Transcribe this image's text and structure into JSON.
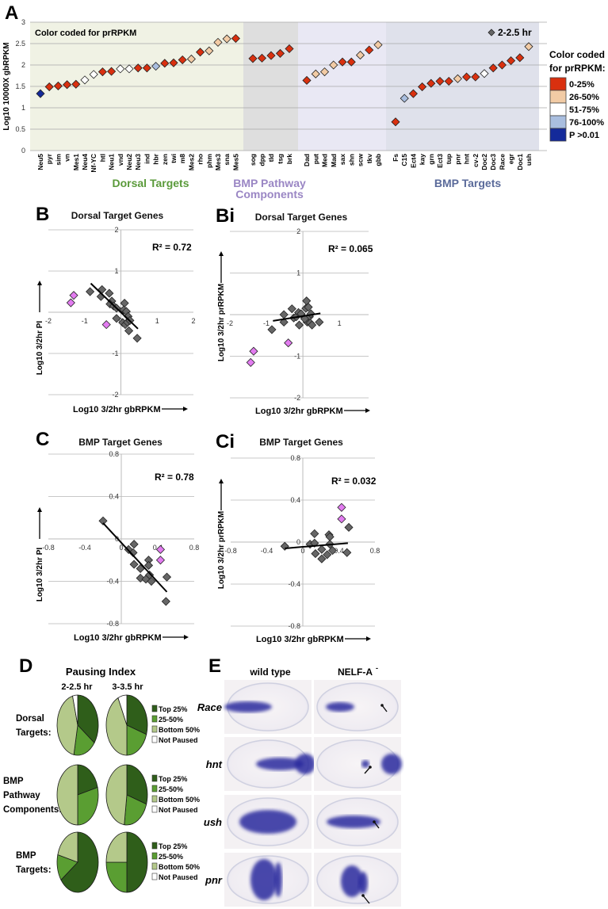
{
  "panel_letters": {
    "A": "A",
    "B": "B",
    "Bi": "Bi",
    "C": "C",
    "Ci": "Ci",
    "D": "D",
    "E": "E"
  },
  "colors": {
    "p0_25": "#d9300f",
    "p26_50": "#f2cba5",
    "p51_75": "#ffffff",
    "p76_100": "#a9bedf",
    "pgt": "#142a9a",
    "gray_point": "#666666",
    "pink_point": "#e27cf0",
    "dorsal_bg": "#f0f2e4",
    "pathway_gray_bg": "#dedede",
    "pathway_bg": "#e9e8f4",
    "bmp_bg": "#dfe1eb",
    "pie_top": "#2f5e1a",
    "pie_25_50": "#5a9e32",
    "pie_bottom": "#b4c98a",
    "pie_not": "#ffffff"
  },
  "chart_data": [
    {
      "id": "A",
      "type": "scatter",
      "ylabel": "Log10 10000X gbRPKM",
      "ylim": [
        0,
        3
      ],
      "yticks": [
        0,
        0.5,
        1,
        1.5,
        2,
        2.5,
        3
      ],
      "annotation": "Color coded for prRPKM",
      "series_label": "2-2.5 hr",
      "legend": {
        "title1": "Color coded",
        "title2": "for prRPKM:",
        "placement": "right",
        "items": [
          {
            "key": "p0_25",
            "label": "0-25%"
          },
          {
            "key": "p26_50",
            "label": "26-50%"
          },
          {
            "key": "p51_75",
            "label": "51-75%"
          },
          {
            "key": "p76_100",
            "label": "76-100%"
          },
          {
            "key": "pgt",
            "label": "P >0.01"
          }
        ]
      },
      "groups": [
        {
          "label": "Dorsal Targets",
          "color": "#5a9a3a",
          "genes": [
            [
              "Neu5",
              1.33,
              "pgt"
            ],
            [
              "pyr",
              1.49,
              "p0_25"
            ],
            [
              "sim",
              1.51,
              "p0_25"
            ],
            [
              "vn",
              1.54,
              "p0_25"
            ],
            [
              "Mes1",
              1.55,
              "p0_25"
            ],
            [
              "Neu4",
              1.65,
              "p51_75"
            ],
            [
              "Nf-YC",
              1.78,
              "p51_75"
            ],
            [
              "htl",
              1.84,
              "p0_25"
            ],
            [
              "Neu1",
              1.85,
              "p0_25"
            ],
            [
              "vnd",
              1.91,
              "p51_75"
            ],
            [
              "Neu2",
              1.91,
              "p51_75"
            ],
            [
              "Neu3",
              1.93,
              "p0_25"
            ],
            [
              "ind",
              1.93,
              "p0_25"
            ],
            [
              "hbr",
              1.97,
              "p76_100"
            ],
            [
              "zen",
              2.04,
              "p0_25"
            ],
            [
              "twi",
              2.05,
              "p0_25"
            ],
            [
              "m8",
              2.12,
              "p0_25"
            ],
            [
              "Mes2",
              2.14,
              "p26_50"
            ],
            [
              "rho",
              2.3,
              "p0_25"
            ],
            [
              "phm",
              2.33,
              "p26_50"
            ],
            [
              "Mes3",
              2.53,
              "p26_50"
            ],
            [
              "sna",
              2.61,
              "p26_50"
            ],
            [
              "Mes5",
              2.62,
              "p0_25"
            ]
          ]
        },
        {
          "label": "BMP Pathway Components",
          "label_lines": [
            "BMP Pathway",
            "Components"
          ],
          "color": "#9a86c4",
          "genes": [
            [
              "sog",
              2.15,
              "p0_25"
            ],
            [
              "dpp",
              2.16,
              "p0_25"
            ],
            [
              "tld",
              2.22,
              "p0_25"
            ],
            [
              "tsg",
              2.27,
              "p0_25"
            ],
            [
              "brk",
              2.38,
              "p0_25"
            ],
            [
              "Dad",
              1.64,
              "p0_25"
            ],
            [
              "put",
              1.79,
              "p26_50"
            ],
            [
              "Med",
              1.84,
              "p26_50"
            ],
            [
              "Mad",
              2.0,
              "p26_50"
            ],
            [
              "sax",
              2.07,
              "p0_25"
            ],
            [
              "shn",
              2.07,
              "p0_25"
            ],
            [
              "scw",
              2.23,
              "p26_50"
            ],
            [
              "tkv",
              2.35,
              "p0_25"
            ],
            [
              "gbb",
              2.47,
              "p26_50"
            ]
          ]
        },
        {
          "label": "BMP Targets",
          "color": "#5a6a9a",
          "genes": [
            [
              "Fs",
              0.67,
              "p0_25"
            ],
            [
              "C15",
              1.22,
              "p76_100"
            ],
            [
              "Ect4",
              1.33,
              "p0_25"
            ],
            [
              "kay",
              1.49,
              "p0_25"
            ],
            [
              "grn",
              1.57,
              "p0_25"
            ],
            [
              "Ect3",
              1.62,
              "p0_25"
            ],
            [
              "tup",
              1.62,
              "p0_25"
            ],
            [
              "pnr",
              1.68,
              "p26_50"
            ],
            [
              "hnt",
              1.72,
              "p0_25"
            ],
            [
              "cv-2",
              1.72,
              "p0_25"
            ],
            [
              "Doc2",
              1.8,
              "p51_75"
            ],
            [
              "Doc3",
              1.93,
              "p0_25"
            ],
            [
              "Race",
              2.0,
              "p0_25"
            ],
            [
              "egr",
              2.1,
              "p0_25"
            ],
            [
              "Doc1",
              2.17,
              "p0_25"
            ],
            [
              "ush",
              2.43,
              "p26_50"
            ]
          ]
        }
      ]
    },
    {
      "id": "B",
      "type": "scatter",
      "title": "Dorsal Target Genes",
      "xlabel": "Log10 3/2hr gbRPKM",
      "ylabel": "Log10 3/2hr PI",
      "r2": "R² = 0.72",
      "xlim": [
        -2,
        2
      ],
      "ylim": [
        -2,
        2
      ],
      "xticks": [
        -2,
        -1,
        0,
        1,
        2
      ],
      "yticks": [
        -2,
        -1,
        1,
        2
      ],
      "xtick_labels": [
        "-2",
        "-1",
        "0",
        "1",
        "2"
      ],
      "ytick_labels": [
        "-2",
        "-1",
        "1",
        "2"
      ],
      "gray": [
        [
          -0.85,
          0.5
        ],
        [
          -0.52,
          0.55
        ],
        [
          -0.55,
          0.38
        ],
        [
          -0.32,
          0.46
        ],
        [
          -0.25,
          0.27
        ],
        [
          -0.3,
          0.2
        ],
        [
          -0.2,
          0.15
        ],
        [
          -0.12,
          0.1
        ],
        [
          -0.12,
          -0.15
        ],
        [
          0.1,
          0.22
        ],
        [
          0.08,
          0.06
        ],
        [
          0.15,
          0.02
        ],
        [
          0.2,
          -0.1
        ],
        [
          0.05,
          -0.25
        ],
        [
          0.12,
          -0.3
        ],
        [
          0.18,
          -0.24
        ],
        [
          0.25,
          -0.2
        ],
        [
          0.22,
          -0.45
        ],
        [
          0.45,
          -0.63
        ]
      ],
      "pink": [
        [
          -1.38,
          0.23
        ],
        [
          -1.3,
          0.41
        ],
        [
          -0.4,
          -0.3
        ]
      ],
      "fit": [
        [
          -0.83,
          0.7
        ],
        [
          0.47,
          -0.4
        ]
      ]
    },
    {
      "id": "Bi",
      "type": "scatter",
      "title": "Dorsal Target Genes",
      "xlabel": "Log10 3/2hr gbRPKM",
      "ylabel": "Log10 3/2hr prRPKM",
      "r2": "R² = 0.065",
      "xlim": [
        -2,
        1.8
      ],
      "ylim": [
        -2,
        2
      ],
      "xticks": [
        -2,
        -1,
        1
      ],
      "yticks": [
        -2,
        -1,
        1,
        2
      ],
      "xtick_labels": [
        "-2",
        "-1",
        "1"
      ],
      "ytick_labels": [
        "-2",
        "-1",
        "1",
        "2"
      ],
      "gray": [
        [
          -0.85,
          -0.36
        ],
        [
          -0.52,
          -0.18
        ],
        [
          -0.52,
          0.0
        ],
        [
          -0.3,
          0.14
        ],
        [
          -0.25,
          -0.08
        ],
        [
          -0.18,
          -0.05
        ],
        [
          -0.12,
          0.05
        ],
        [
          -0.05,
          0.02
        ],
        [
          -0.1,
          -0.25
        ],
        [
          0.1,
          0.33
        ],
        [
          0.08,
          0.15
        ],
        [
          0.15,
          0.18
        ],
        [
          0.12,
          -0.18
        ],
        [
          0.18,
          -0.05
        ],
        [
          0.22,
          0.02
        ],
        [
          0.2,
          -0.2
        ],
        [
          0.25,
          -0.25
        ],
        [
          0.05,
          -0.1
        ],
        [
          0.45,
          -0.18
        ]
      ],
      "pink": [
        [
          -1.35,
          -0.88
        ],
        [
          -1.43,
          -1.15
        ],
        [
          -0.4,
          -0.68
        ]
      ],
      "fit": [
        [
          -0.82,
          -0.15
        ],
        [
          0.48,
          0.03
        ]
      ]
    },
    {
      "id": "C",
      "type": "scatter",
      "title": "BMP Target Genes",
      "xlabel": "Log10 3/2hr gbRPKM",
      "ylabel": "Log10 3/2hr PI",
      "r2": "R² = 0.78",
      "xlim": [
        -0.8,
        0.8
      ],
      "ylim": [
        -0.8,
        0.8
      ],
      "xticks": [
        -0.8,
        -0.4,
        0,
        0.4,
        0.8
      ],
      "yticks": [
        -0.8,
        -0.4,
        0,
        0.4,
        0.8
      ],
      "xtick_labels": [
        "-0.8",
        "-0.4",
        "0",
        "0.4",
        "0.8"
      ],
      "ytick_labels": [
        "-0.8",
        "-0.4",
        "0",
        "0.4",
        "0.8"
      ],
      "gray": [
        [
          -0.2,
          0.17
        ],
        [
          0.08,
          -0.1
        ],
        [
          0.13,
          -0.13
        ],
        [
          0.14,
          -0.05
        ],
        [
          0.14,
          -0.24
        ],
        [
          0.21,
          -0.28
        ],
        [
          0.21,
          -0.37
        ],
        [
          0.27,
          -0.38
        ],
        [
          0.3,
          -0.2
        ],
        [
          0.3,
          -0.25
        ],
        [
          0.31,
          -0.34
        ],
        [
          0.33,
          -0.4
        ],
        [
          0.5,
          -0.36
        ],
        [
          0.49,
          -0.59
        ]
      ],
      "pink": [
        [
          0.43,
          -0.1
        ],
        [
          0.43,
          -0.2
        ]
      ],
      "fit": [
        [
          -0.2,
          0.15
        ],
        [
          0.5,
          -0.5
        ]
      ]
    },
    {
      "id": "Ci",
      "type": "scatter",
      "title": "BMP Target Genes",
      "xlabel": "Log10 3/2hr gbRPKM",
      "ylabel": "Log10 3/2hr prRPKM",
      "r2": "R² = 0.032",
      "xlim": [
        -0.8,
        0.8
      ],
      "ylim": [
        -0.8,
        0.8
      ],
      "xticks": [
        -0.8,
        -0.4,
        0,
        0.4,
        0.8
      ],
      "yticks": [
        -0.8,
        -0.4,
        0,
        0.4,
        0.8
      ],
      "xtick_labels": [
        "-0.8",
        "-0.4",
        "0",
        "0.4",
        "0.8"
      ],
      "ytick_labels": [
        "-0.8",
        "-0.4",
        "0",
        "0.4",
        "0.8"
      ],
      "gray": [
        [
          -0.2,
          -0.04
        ],
        [
          0.08,
          -0.02
        ],
        [
          0.13,
          0.08
        ],
        [
          0.13,
          -0.01
        ],
        [
          0.14,
          -0.11
        ],
        [
          0.21,
          -0.07
        ],
        [
          0.21,
          -0.16
        ],
        [
          0.27,
          -0.12
        ],
        [
          0.29,
          0.07
        ],
        [
          0.3,
          0.05
        ],
        [
          0.3,
          -0.02
        ],
        [
          0.33,
          -0.08
        ],
        [
          0.49,
          -0.1
        ],
        [
          0.51,
          0.14
        ]
      ],
      "pink": [
        [
          0.43,
          0.33
        ],
        [
          0.43,
          0.22
        ]
      ],
      "fit": [
        [
          -0.2,
          -0.06
        ],
        [
          0.5,
          -0.01
        ]
      ]
    },
    {
      "id": "D",
      "type": "pie",
      "title": "Pausing Index",
      "columns": [
        "2-2.5 hr",
        "3-3.5 hr"
      ],
      "legend": [
        "Top 25%",
        "25-50%",
        "Bottom 50%",
        "Not Paused"
      ],
      "rows": [
        {
          "label_lines": [
            "Dorsal",
            "Targets:"
          ],
          "pies": [
            [
              35,
              18,
              43,
              4
            ],
            [
              30,
              20,
              43,
              7
            ]
          ]
        },
        {
          "label_lines": [
            "BMP",
            "Pathway",
            "Components:"
          ],
          "pies": [
            [
              21,
              29,
              50,
              0
            ],
            [
              30,
              22,
              48,
              0
            ]
          ]
        },
        {
          "label_lines": [
            "BMP",
            "Targets:"
          ],
          "pies": [
            [
              65,
              14,
              21,
              0
            ],
            [
              50,
              25,
              25,
              0
            ]
          ]
        }
      ]
    }
  ],
  "panel_E": {
    "columns": [
      "wild type",
      "NELF-A"
    ],
    "column_superscript": "-",
    "genes": [
      "Race",
      "hnt",
      "ush",
      "pnr"
    ]
  }
}
